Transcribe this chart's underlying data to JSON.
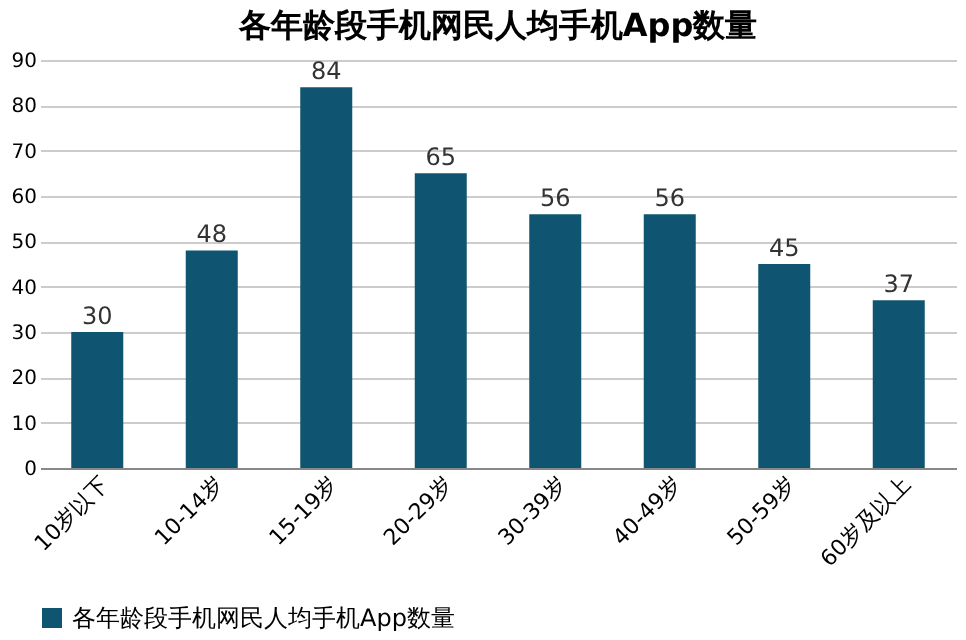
{
  "chart_data": {
    "type": "bar",
    "title": "各年龄段手机网民人均手机App数量",
    "categories": [
      "10岁以下",
      "10-14岁",
      "15-19岁",
      "20-29岁",
      "30-39岁",
      "40-49岁",
      "50-59岁",
      "60岁及以上"
    ],
    "series": [
      {
        "name": "各年龄段手机网民人均手机App数量",
        "color": "#0f5470",
        "values": [
          30,
          48,
          84,
          65,
          56,
          56,
          45,
          37
        ]
      }
    ],
    "ylim": [
      0,
      90
    ],
    "yticks": [
      0,
      10,
      20,
      30,
      40,
      50,
      60,
      70,
      80,
      90
    ],
    "grid": "y",
    "legend": "bottom",
    "data_labels": true
  }
}
